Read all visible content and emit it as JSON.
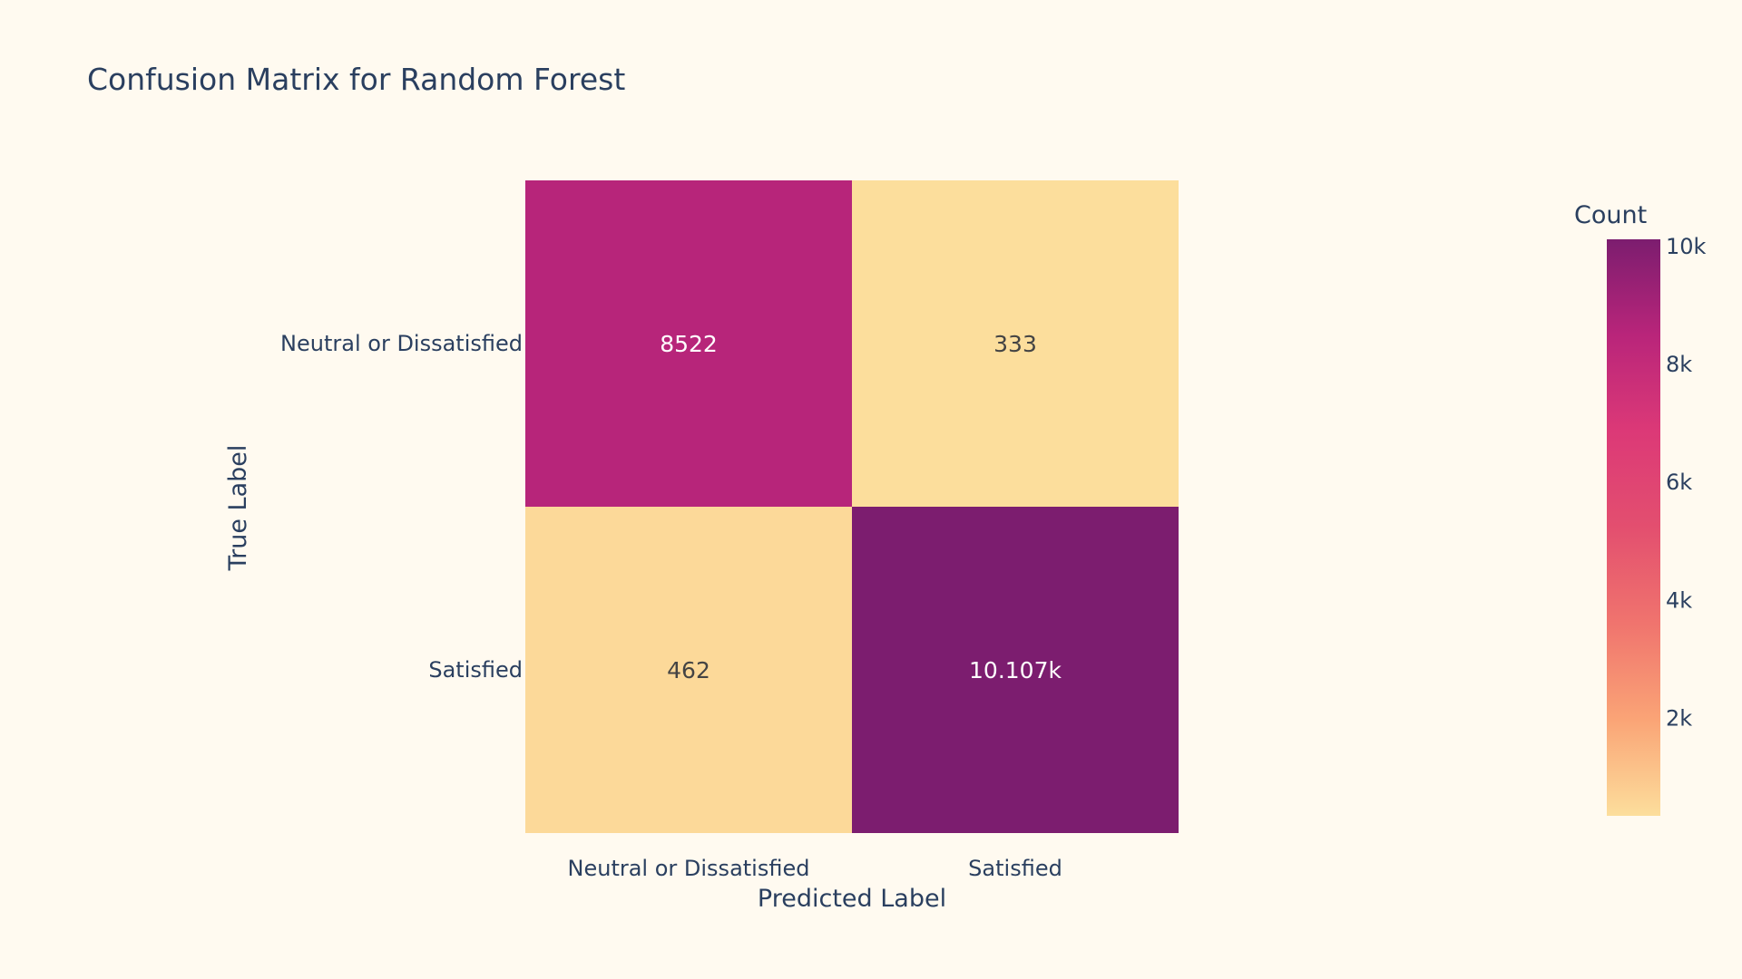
{
  "chart_data": {
    "type": "heatmap",
    "title": "Confusion Matrix for Random Forest",
    "xlabel": "Predicted Label",
    "ylabel": "True Label",
    "x_categories": [
      "Neutral or Dissatisfied",
      "Satisfied"
    ],
    "y_categories": [
      "Neutral or Dissatisfied",
      "Satisfied"
    ],
    "z": [
      [
        8522,
        333
      ],
      [
        462,
        10107
      ]
    ],
    "cell_labels": [
      [
        "8522",
        "333"
      ],
      [
        "462",
        "10.107k"
      ]
    ],
    "colorbar": {
      "title": "Count",
      "range": [
        333,
        10107
      ],
      "ticks": [
        2000,
        4000,
        6000,
        8000,
        10000
      ],
      "tick_labels": [
        "2k",
        "4k",
        "6k",
        "8k",
        "10k"
      ]
    },
    "colorscale": [
      "#fcde9c",
      "#faa476",
      "#f0746e",
      "#e34f6f",
      "#dc3977",
      "#b9257a",
      "#7c1d6f"
    ]
  }
}
